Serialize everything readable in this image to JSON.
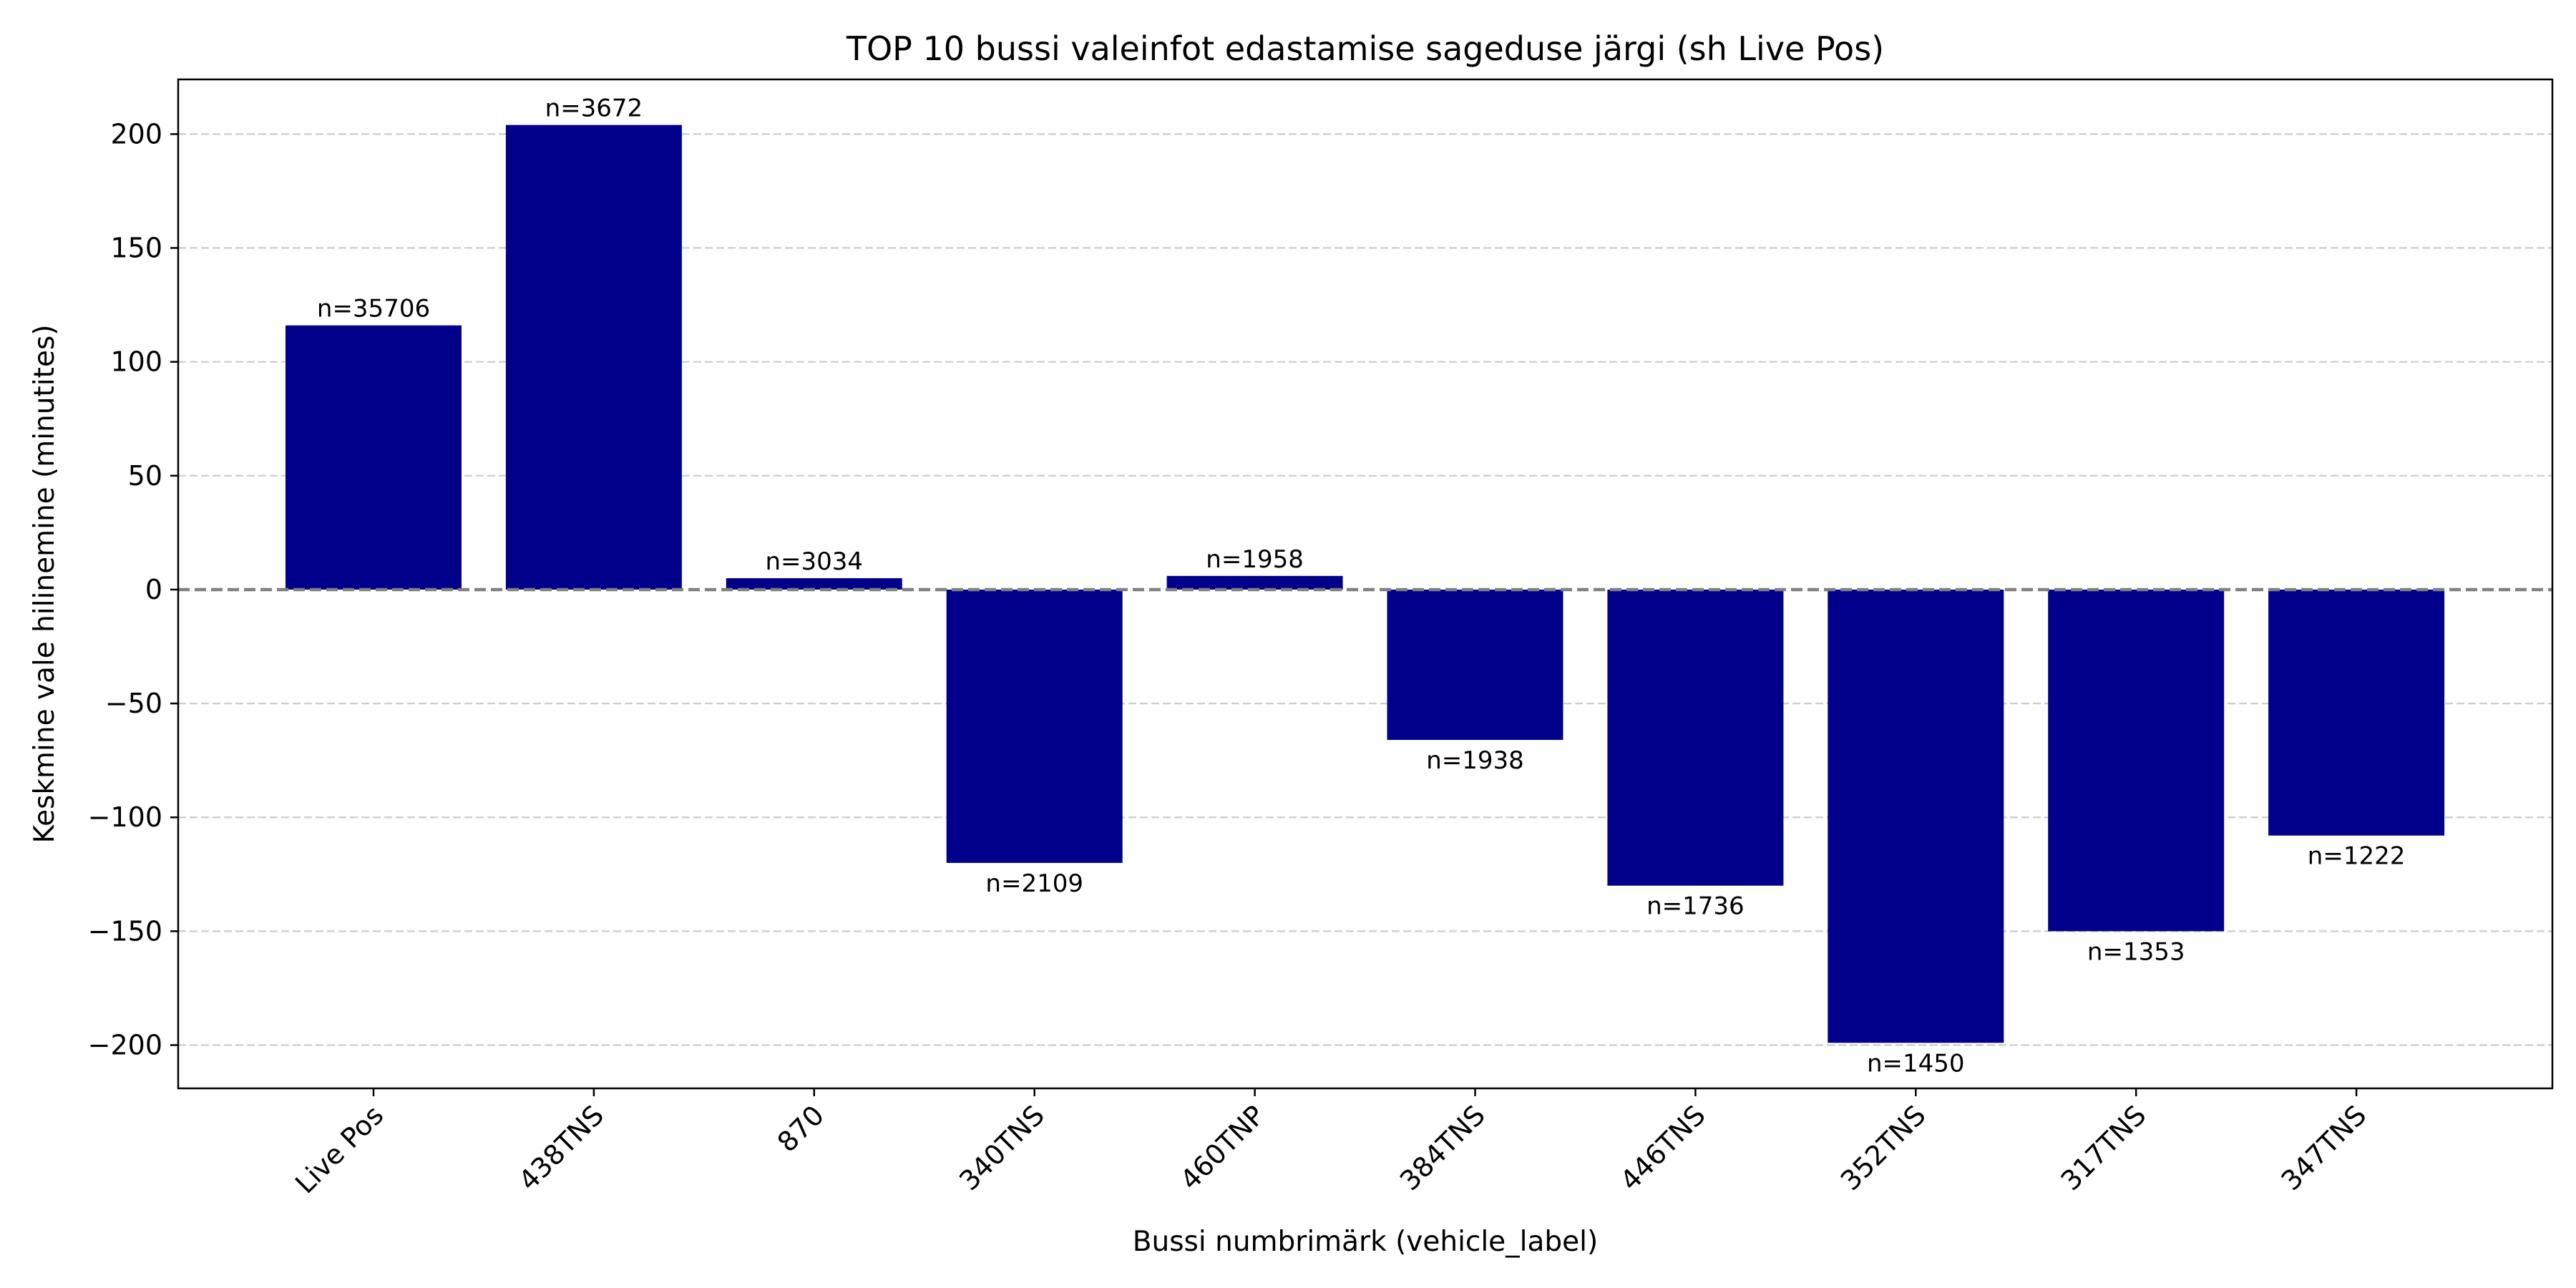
{
  "chart_data": {
    "type": "bar",
    "title": "TOP 10 bussi valeinfot edastamise sageduse järgi (sh Live Pos)",
    "xlabel": "Bussi numbrimärk (vehicle_label)",
    "ylabel": "Keskmine vale hilinemine (minutites)",
    "categories": [
      "Live Pos",
      "438TNS",
      "870",
      "340TNS",
      "460TNP",
      "384TNS",
      "446TNS",
      "352TNS",
      "317TNS",
      "347TNS"
    ],
    "values": [
      116,
      204,
      5,
      -120,
      6,
      -66,
      -130,
      -199,
      -150,
      -108
    ],
    "data_labels": [
      "n=35706",
      "n=3672",
      "n=3034",
      "n=2109",
      "n=1958",
      "n=1938",
      "n=1736",
      "n=1450",
      "n=1353",
      "n=1222"
    ],
    "yticks": [
      200,
      150,
      100,
      50,
      0,
      -50,
      -100,
      -150,
      -200
    ],
    "ytick_labels": [
      "200",
      "150",
      "100",
      "50",
      "0",
      "−50",
      "−100",
      "−150",
      "−200"
    ],
    "ylim": [
      -219,
      224
    ],
    "grid": true,
    "bar_color": "#00008b",
    "zero_line_color": "#808080",
    "grid_color": "#cccccc"
  }
}
